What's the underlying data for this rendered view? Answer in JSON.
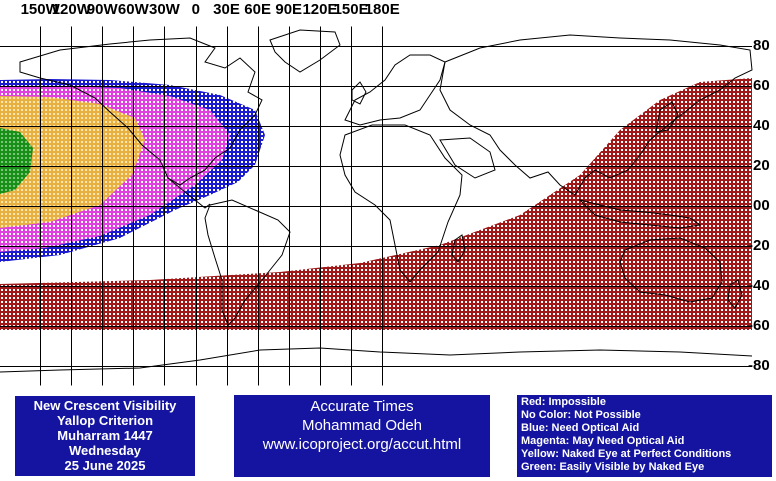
{
  "map": {
    "longitude_labels": [
      "150W",
      "120W",
      "90W",
      "60W",
      "30W",
      "0",
      "30E",
      "60E",
      "90E",
      "120E",
      "150E",
      "180E"
    ],
    "latitude_labels": [
      "80",
      "60",
      "40",
      "20",
      "00",
      "-20",
      "-40",
      "-60",
      "-80"
    ],
    "longitude_values": [
      -150,
      -120,
      -90,
      -60,
      -30,
      0,
      30,
      60,
      90,
      120,
      150,
      180
    ],
    "latitude_values": [
      80,
      60,
      40,
      20,
      0,
      -20,
      -40,
      -60,
      -80
    ],
    "extent": {
      "lon_min": -180,
      "lon_max": 180,
      "lat_min": -90,
      "lat_max": 90
    },
    "zones": [
      {
        "name": "Impossible",
        "color": "#a01818"
      },
      {
        "name": "Need Optical Aid",
        "color": "#1a1ad0"
      },
      {
        "name": "May Need Optical Aid",
        "color": "#e040e0"
      },
      {
        "name": "Naked Eye at Perfect Conditions",
        "color": "#e8b040"
      },
      {
        "name": "Easily Visible by Naked Eye",
        "color": "#189018"
      }
    ]
  },
  "info_panel": {
    "line1": "New Crescent Visibility",
    "line2": "Yallop Criterion",
    "line3": "Muharram 1447",
    "line4": "Wednesday",
    "line5": "25 June 2025"
  },
  "credit_panel": {
    "line1": "Accurate Times",
    "line2": "Mohammad Odeh",
    "line3": "www.icoproject.org/accut.html"
  },
  "legend": {
    "items": [
      "Red: Impossible",
      "No Color: Not Possible",
      "Blue: Need Optical Aid",
      "Magenta: May Need Optical Aid",
      "Yellow: Naked Eye at Perfect Conditions",
      "Green: Easily Visible by Naked Eye"
    ]
  },
  "colors": {
    "panel_background": "#1414a0",
    "panel_text": "#ffffff",
    "grid_line": "#000000",
    "land_outline": "#000000"
  }
}
